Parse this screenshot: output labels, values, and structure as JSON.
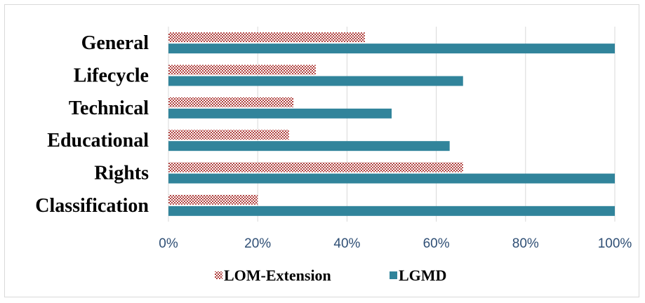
{
  "chart_data": {
    "type": "bar",
    "orientation": "horizontal",
    "categories": [
      "General",
      "Lifecycle",
      "Technical",
      "Educational",
      "Rights",
      "Classification"
    ],
    "series": [
      {
        "name": "LOM-Extension",
        "values": [
          44,
          33,
          28,
          27,
          66,
          20
        ],
        "color": "#c0504d",
        "pattern": "checkered"
      },
      {
        "name": "LGMD",
        "values": [
          100,
          66,
          50,
          63,
          100,
          100
        ],
        "color": "#31849b",
        "pattern": "solid"
      }
    ],
    "xlim": [
      0,
      100
    ],
    "xticks": [
      "0%",
      "20%",
      "40%",
      "60%",
      "80%",
      "100%"
    ],
    "grid": true,
    "legend": "bottom"
  }
}
